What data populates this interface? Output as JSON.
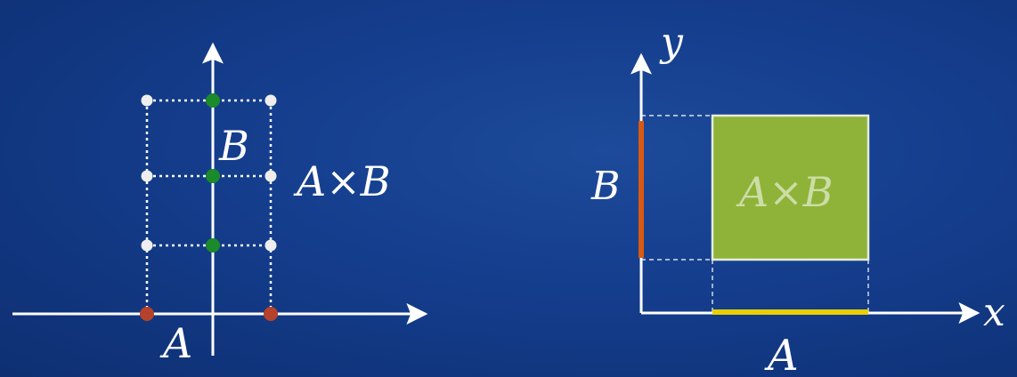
{
  "left_diagram": {
    "label_a": "A",
    "label_b": "B",
    "label_product": "A×B",
    "colors": {
      "axis": "#ffffff",
      "set_a_point": "#b5422a",
      "set_b_point": "#1b8a2a",
      "product_point": "#eeeeee"
    },
    "set_a_count": 2,
    "set_b_count": 3
  },
  "right_diagram": {
    "axis_x_label": "x",
    "axis_y_label": "y",
    "label_a": "A",
    "label_b": "B",
    "label_product": "A×B",
    "colors": {
      "axis": "#ffffff",
      "set_a_segment": "#e8d000",
      "set_b_segment": "#d85a10",
      "product_fill": "#8fb339"
    }
  }
}
